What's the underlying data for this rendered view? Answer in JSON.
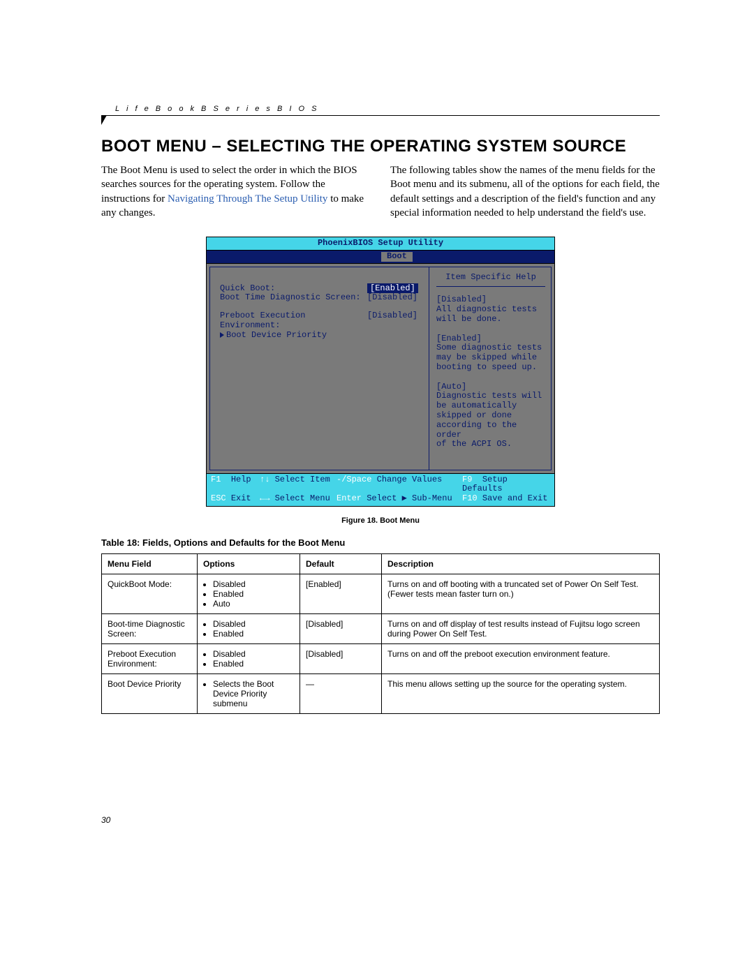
{
  "header": {
    "breadcrumb": "L i f e B o o k   B   S e r i e s   B I O S"
  },
  "title": "BOOT MENU – SELECTING THE OPERATING SYSTEM SOURCE",
  "intro": {
    "left_a": "The Boot Menu is used to select the order in which the BIOS searches sources for the operating system. Follow the instructions for ",
    "left_link": "Navigating Through The Setup Utility",
    "left_b": " to make any changes.",
    "right": "The following tables show the names of the menu fields for the Boot menu and its submenu, all of the options for each field, the default settings and a description of the field's function and any special information needed to help understand the field's use."
  },
  "bios": {
    "title": "PhoenixBIOS Setup Utility",
    "tab": "Boot",
    "rows": {
      "r1_label": "Quick Boot:",
      "r1_val": "Enabled",
      "r2_label": "Boot Time Diagnostic Screen:",
      "r2_val": "[Disabled]",
      "r3_label": "Preboot Execution Environment:",
      "r3_val": "[Disabled]",
      "r4_label": "Boot Device Priority"
    },
    "help_title": "Item Specific Help",
    "help_body": "[Disabled]\nAll diagnostic tests\nwill be done.\n\n[Enabled]\nSome diagnostic tests\nmay be skipped while\nbooting to speed up.\n\n[Auto]\nDiagnostic tests will\nbe automatically\nskipped or done\naccording to the order\nof the ACPI OS.",
    "footer": {
      "f1k": "F1",
      "f1t": "Help",
      "f2k": "↑↓",
      "f2t": "Select Item",
      "f3k": "-/Space",
      "f3t": "Change Values",
      "f4k": "F9",
      "f4t": "Setup Defaults",
      "g1k": "ESC",
      "g1t": "Exit",
      "g2k": "←→",
      "g2t": "Select Menu",
      "g3k": "Enter",
      "g3t": "Select ▶ Sub-Menu",
      "g4k": "F10",
      "g4t": "Save and Exit"
    }
  },
  "figure_caption": "Figure 18.  Boot Menu",
  "table_title": "Table 18: Fields, Options and Defaults for the Boot Menu",
  "table": {
    "headers": {
      "c1": "Menu Field",
      "c2": "Options",
      "c3": "Default",
      "c4": "Description"
    },
    "rows": [
      {
        "field": "QuickBoot Mode:",
        "opts": [
          "Disabled",
          "Enabled",
          "Auto"
        ],
        "def": "[Enabled]",
        "desc": "Turns on and off booting with a truncated set of Power On Self Test. (Fewer tests mean faster turn on.)"
      },
      {
        "field": "Boot-time Diagnostic Screen:",
        "opts": [
          "Disabled",
          "Enabled"
        ],
        "def": "[Disabled]",
        "desc": "Turns on and off display of test results instead of Fujitsu logo screen during Power On Self Test."
      },
      {
        "field": "Preboot Execution Environment:",
        "opts": [
          "Disabled",
          "Enabled"
        ],
        "def": "[Disabled]",
        "desc": "Turns on and off the preboot execution environment feature."
      },
      {
        "field": "Boot Device Priority",
        "opts": [
          "Selects the Boot Device Priority submenu"
        ],
        "def": "—",
        "desc": "This menu allows setting up the source for the operating system."
      }
    ]
  },
  "page_number": "30"
}
